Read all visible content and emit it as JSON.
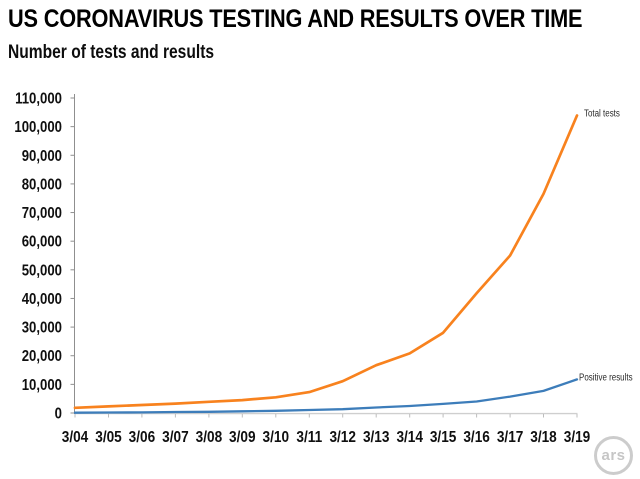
{
  "header": {
    "title": "US CORONAVIRUS TESTING AND RESULTS OVER TIME",
    "subtitle": "Number of tests and results"
  },
  "chart_data": {
    "type": "line",
    "title": "US CORONAVIRUS TESTING AND RESULTS OVER TIME",
    "subtitle": "Number of tests and results",
    "x": [
      "3/04",
      "3/05",
      "3/06",
      "3/07",
      "3/08",
      "3/09",
      "3/10",
      "3/11",
      "3/12",
      "3/13",
      "3/14",
      "3/15",
      "3/16",
      "3/17",
      "3/18",
      "3/19"
    ],
    "series": [
      {
        "name": "Total tests",
        "color": "#F8821E",
        "values": [
          1800,
          2300,
          2800,
          3300,
          3900,
          4500,
          5500,
          7300,
          11100,
          16700,
          20800,
          28000,
          41800,
          55000,
          76500,
          103900
        ]
      },
      {
        "name": "Positive results",
        "color": "#3D7DBA",
        "values": [
          120,
          180,
          220,
          340,
          420,
          580,
          780,
          1050,
          1320,
          1920,
          2450,
          3170,
          4020,
          5720,
          7730,
          11720
        ]
      }
    ],
    "xlabel": "",
    "ylabel": "",
    "ylim": [
      0,
      110000
    ],
    "ytick_step": 10000,
    "ytick_labels": [
      "0",
      "10,000",
      "20,000",
      "30,000",
      "40,000",
      "50,000",
      "60,000",
      "70,000",
      "80,000",
      "90,000",
      "100,000",
      "110,000"
    ],
    "grid": false,
    "legend_position": "line-end-labels"
  },
  "branding": {
    "logo_text": "ars"
  }
}
